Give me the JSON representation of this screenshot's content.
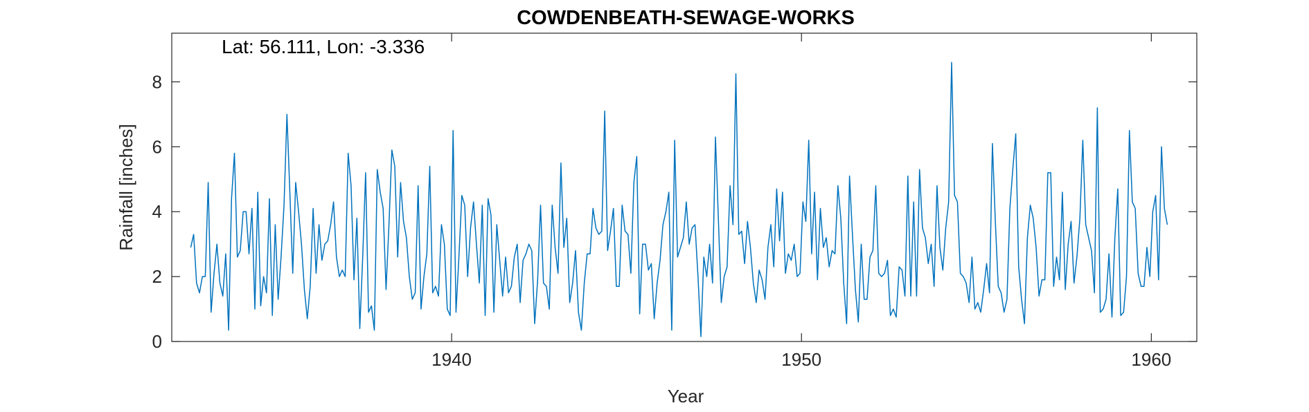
{
  "chart_data": {
    "type": "line",
    "title": "COWDENBEATH-SEWAGE-WORKS",
    "annotation": "Lat: 56.111, Lon: -3.336",
    "xlabel": "Year",
    "ylabel": "Rainfall [inches]",
    "xlim": [
      1932,
      1961.3
    ],
    "ylim": [
      0,
      9.5
    ],
    "xticks": [
      {
        "value": 1940,
        "label": "1940"
      },
      {
        "value": 1950,
        "label": "1950"
      },
      {
        "value": 1960,
        "label": "1960"
      }
    ],
    "yticks": [
      {
        "value": 0,
        "label": "0"
      },
      {
        "value": 2,
        "label": "2"
      },
      {
        "value": 4,
        "label": "4"
      },
      {
        "value": 6,
        "label": "6"
      },
      {
        "value": 8,
        "label": "8"
      }
    ],
    "grid": false,
    "line_color": "#0072bd",
    "series": [
      {
        "x_start": 1932.5417,
        "x_step": 0.08333,
        "values": [
          2.9,
          3.3,
          1.8,
          1.5,
          2.0,
          2.0,
          4.9,
          0.9,
          2.1,
          3.0,
          1.8,
          1.4,
          2.7,
          0.35,
          4.4,
          5.8,
          2.6,
          2.8,
          4.0,
          4.0,
          2.7,
          4.1,
          1.0,
          4.6,
          1.1,
          2.0,
          1.5,
          4.4,
          0.8,
          3.6,
          1.3,
          2.6,
          4.2,
          7.0,
          4.6,
          2.1,
          4.9,
          4.0,
          3.0,
          1.6,
          0.7,
          1.7,
          4.1,
          2.1,
          3.6,
          2.5,
          3.0,
          3.1,
          3.6,
          4.3,
          2.6,
          2.0,
          2.2,
          2.0,
          5.8,
          4.8,
          1.9,
          3.8,
          0.4,
          2.6,
          5.2,
          0.9,
          1.1,
          0.35,
          5.3,
          4.6,
          4.1,
          1.6,
          3.6,
          5.9,
          5.4,
          2.6,
          4.9,
          3.7,
          3.2,
          2.0,
          1.3,
          1.5,
          4.8,
          1.0,
          2.0,
          2.7,
          5.4,
          1.5,
          1.7,
          1.4,
          3.6,
          3.0,
          1.0,
          0.8,
          6.5,
          0.9,
          2.6,
          4.5,
          4.2,
          2.0,
          3.5,
          4.3,
          3.0,
          1.8,
          4.2,
          0.8,
          4.4,
          3.9,
          0.9,
          3.6,
          2.5,
          1.4,
          2.6,
          1.5,
          1.7,
          2.6,
          3.0,
          1.2,
          2.5,
          2.7,
          3.0,
          2.8,
          0.55,
          1.9,
          4.2,
          1.8,
          1.7,
          1.0,
          4.2,
          2.9,
          2.1,
          5.5,
          2.9,
          3.8,
          1.2,
          1.8,
          2.8,
          0.9,
          0.35,
          1.8,
          2.7,
          2.7,
          4.1,
          3.5,
          3.3,
          3.4,
          7.1,
          2.8,
          3.4,
          4.1,
          1.7,
          1.7,
          4.2,
          3.4,
          3.3,
          2.1,
          4.9,
          5.7,
          0.85,
          3.0,
          3.0,
          2.2,
          2.4,
          0.7,
          1.8,
          2.5,
          3.6,
          4.0,
          4.6,
          0.35,
          6.2,
          2.6,
          2.9,
          3.2,
          4.3,
          3.0,
          3.5,
          3.6,
          2.0,
          0.15,
          2.6,
          2.0,
          3.0,
          1.8,
          6.3,
          3.8,
          1.2,
          2.0,
          2.3,
          4.8,
          3.6,
          8.25,
          3.3,
          3.4,
          2.4,
          3.7,
          2.9,
          1.8,
          1.2,
          2.2,
          1.9,
          1.3,
          2.9,
          3.6,
          2.3,
          4.7,
          3.1,
          4.6,
          2.1,
          2.7,
          2.5,
          3.0,
          2.0,
          2.1,
          4.3,
          3.7,
          6.2,
          2.7,
          4.6,
          1.9,
          4.1,
          2.9,
          3.2,
          2.3,
          2.8,
          2.7,
          4.8,
          3.8,
          1.8,
          0.55,
          5.1,
          3.3,
          1.6,
          0.6,
          3.0,
          1.3,
          1.3,
          2.6,
          2.8,
          4.8,
          2.1,
          2.0,
          2.1,
          2.5,
          0.8,
          1.0,
          0.75,
          2.3,
          2.2,
          1.4,
          5.1,
          1.4,
          4.3,
          1.4,
          5.3,
          3.5,
          3.2,
          2.4,
          3.0,
          1.7,
          4.8,
          2.9,
          2.2,
          3.5,
          4.3,
          8.6,
          4.5,
          4.3,
          2.1,
          2.0,
          1.8,
          1.2,
          2.6,
          1.0,
          1.2,
          0.9,
          1.6,
          2.4,
          1.5,
          6.1,
          3.7,
          1.7,
          1.5,
          0.9,
          1.3,
          4.1,
          5.3,
          6.4,
          2.3,
          1.3,
          0.55,
          3.2,
          4.2,
          3.8,
          2.9,
          1.4,
          1.9,
          1.9,
          5.2,
          5.2,
          1.7,
          2.6,
          1.9,
          4.6,
          1.6,
          3.0,
          3.7,
          1.8,
          2.6,
          3.8,
          6.2,
          3.6,
          3.2,
          2.8,
          1.5,
          7.2,
          0.9,
          1.0,
          1.3,
          2.7,
          0.75,
          3.2,
          4.7,
          0.8,
          0.9,
          2.0,
          6.5,
          4.3,
          4.1,
          2.1,
          1.7,
          1.7,
          2.9,
          2.0,
          4.0,
          4.5,
          1.9,
          6.0,
          4.1,
          3.6
        ]
      }
    ]
  }
}
